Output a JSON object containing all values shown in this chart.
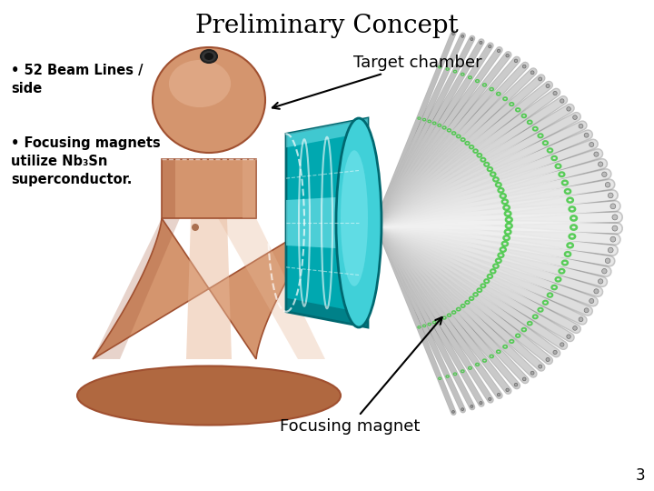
{
  "title": "Preliminary Concept",
  "title_fontsize": 20,
  "background_color": "#ffffff",
  "bullet_text_1": "• 52 Beam Lines /\nside",
  "bullet_text_2": "• Focusing magnets\nutilize Nb₃Sn\nsuperconductor.",
  "bullet_fontsize": 10.5,
  "label_target": "Target chamber",
  "label_focus": "Focusing magnet",
  "label_fontsize": 13,
  "page_number": "3",
  "page_fontsize": 12,
  "copper_light": "#d4956e",
  "copper_mid": "#c47c55",
  "copper_dark": "#a05030",
  "copper_highlight": "#e8b898",
  "copper_base": "#b06840",
  "copper_rim": "#987060",
  "teal_dark": "#006870",
  "teal_mid": "#00a8b0",
  "teal_light": "#40d0d8",
  "teal_bright": "#80e8f0",
  "gray_tube": "#b8b8b8",
  "gray_light": "#d4d4d4",
  "gray_dark": "#787878",
  "gray_white": "#e8e8e8",
  "green_ring": "#40c840",
  "green_ring_dark": "#208020"
}
